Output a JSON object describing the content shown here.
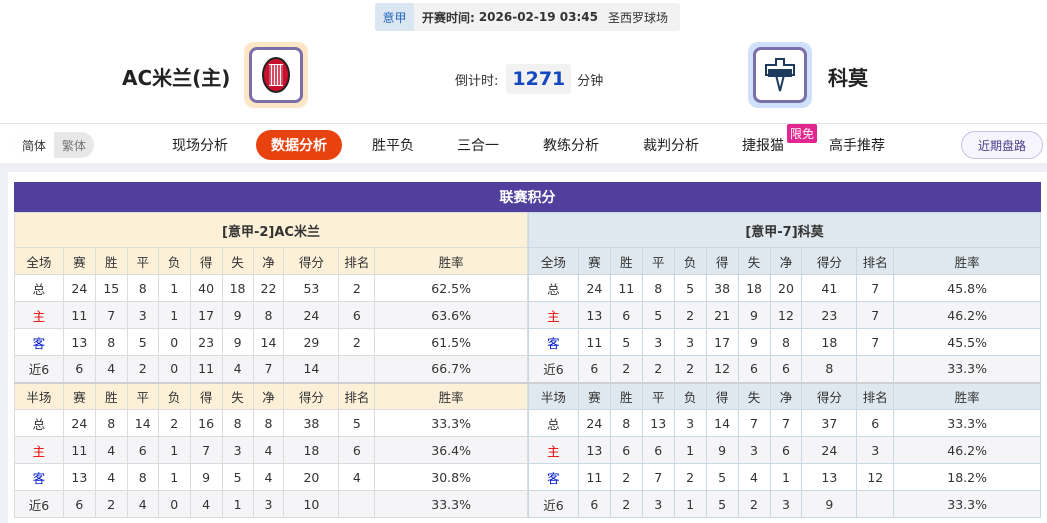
{
  "match": {
    "league": "意甲",
    "start_label": "开赛时间:",
    "start_time": "2026-02-19 03:45",
    "venue": "圣西罗球场",
    "home_team": "AC米兰(主)",
    "away_team": "科莫",
    "countdown_label": "倒计时:",
    "countdown_value": "1271",
    "countdown_unit": "分钟"
  },
  "nav": {
    "lang": [
      "简体",
      "繁体"
    ],
    "tabs": [
      "现场分析",
      "数据分析",
      "胜平负",
      "三合一",
      "教练分析",
      "裁判分析",
      "捷报猫",
      "高手推荐"
    ],
    "active": "数据分析",
    "free_badge": "限免",
    "recent": "近期盘路"
  },
  "colors": {
    "title_bar": "#503f9c",
    "active_tab": "#e8430f",
    "home_text": "#e00000",
    "away_text": "#0018d0"
  },
  "standings": {
    "title": "联赛积分",
    "columns": [
      "赛",
      "胜",
      "平",
      "负",
      "得",
      "失",
      "净",
      "得分",
      "排名",
      "胜率"
    ],
    "home": {
      "header": "[意甲-2]AC米兰",
      "full": {
        "label": "全场",
        "rows": [
          [
            "总",
            "24",
            "15",
            "8",
            "1",
            "40",
            "18",
            "22",
            "53",
            "2",
            "62.5%"
          ],
          [
            "主",
            "11",
            "7",
            "3",
            "1",
            "17",
            "9",
            "8",
            "24",
            "6",
            "63.6%"
          ],
          [
            "客",
            "13",
            "8",
            "5",
            "0",
            "23",
            "9",
            "14",
            "29",
            "2",
            "61.5%"
          ],
          [
            "近6",
            "6",
            "4",
            "2",
            "0",
            "11",
            "4",
            "7",
            "14",
            "",
            "66.7%"
          ]
        ]
      },
      "half": {
        "label": "半场",
        "rows": [
          [
            "总",
            "24",
            "8",
            "14",
            "2",
            "16",
            "8",
            "8",
            "38",
            "5",
            "33.3%"
          ],
          [
            "主",
            "11",
            "4",
            "6",
            "1",
            "7",
            "3",
            "4",
            "18",
            "6",
            "36.4%"
          ],
          [
            "客",
            "13",
            "4",
            "8",
            "1",
            "9",
            "5",
            "4",
            "20",
            "4",
            "30.8%"
          ],
          [
            "近6",
            "6",
            "2",
            "4",
            "0",
            "4",
            "1",
            "3",
            "10",
            "",
            "33.3%"
          ]
        ]
      }
    },
    "away": {
      "header": "[意甲-7]科莫",
      "full": {
        "label": "全场",
        "rows": [
          [
            "总",
            "24",
            "11",
            "8",
            "5",
            "38",
            "18",
            "20",
            "41",
            "7",
            "45.8%"
          ],
          [
            "主",
            "13",
            "6",
            "5",
            "2",
            "21",
            "9",
            "12",
            "23",
            "7",
            "46.2%"
          ],
          [
            "客",
            "11",
            "5",
            "3",
            "3",
            "17",
            "9",
            "8",
            "18",
            "7",
            "45.5%"
          ],
          [
            "近6",
            "6",
            "2",
            "2",
            "2",
            "12",
            "6",
            "6",
            "8",
            "",
            "33.3%"
          ]
        ]
      },
      "half": {
        "label": "半场",
        "rows": [
          [
            "总",
            "24",
            "8",
            "13",
            "3",
            "14",
            "7",
            "7",
            "37",
            "6",
            "33.3%"
          ],
          [
            "主",
            "13",
            "6",
            "6",
            "1",
            "9",
            "3",
            "6",
            "24",
            "3",
            "46.2%"
          ],
          [
            "客",
            "11",
            "2",
            "7",
            "2",
            "5",
            "4",
            "1",
            "13",
            "12",
            "18.2%"
          ],
          [
            "近6",
            "6",
            "2",
            "3",
            "1",
            "5",
            "2",
            "3",
            "9",
            "",
            "33.3%"
          ]
        ]
      }
    }
  }
}
